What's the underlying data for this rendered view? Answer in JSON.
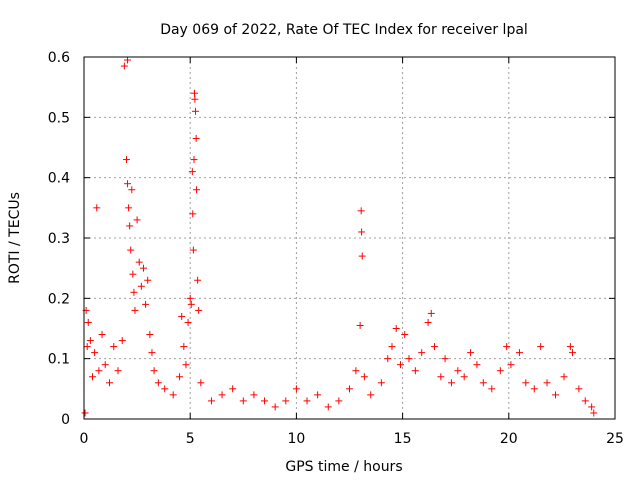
{
  "chart_data": {
    "type": "scatter",
    "title": "Day 069 of 2022, Rate Of TEC Index for receiver lpal",
    "xlabel": "GPS time / hours",
    "ylabel": "ROTI / TECUs",
    "xlim": [
      0,
      25
    ],
    "ylim": [
      0,
      0.6
    ],
    "xticks": [
      "0",
      "5",
      "10",
      "15",
      "20",
      "25"
    ],
    "yticks": [
      "0",
      "0.1",
      "0.2",
      "0.3",
      "0.4",
      "0.5",
      "0.6"
    ],
    "grid": true,
    "marker": "+",
    "color": "#ff0000",
    "series": [
      {
        "points": [
          [
            0.05,
            0.01
          ],
          [
            0.1,
            0.18
          ],
          [
            0.15,
            0.12
          ],
          [
            0.2,
            0.16
          ],
          [
            0.3,
            0.13
          ],
          [
            0.4,
            0.07
          ],
          [
            0.5,
            0.11
          ],
          [
            0.6,
            0.35
          ],
          [
            0.7,
            0.08
          ],
          [
            0.85,
            0.14
          ],
          [
            1.0,
            0.09
          ],
          [
            1.2,
            0.06
          ],
          [
            1.4,
            0.12
          ],
          [
            1.6,
            0.08
          ],
          [
            1.8,
            0.13
          ],
          [
            1.9,
            0.585
          ],
          [
            2.05,
            0.595
          ],
          [
            2.0,
            0.43
          ],
          [
            2.05,
            0.39
          ],
          [
            2.1,
            0.35
          ],
          [
            2.15,
            0.32
          ],
          [
            2.2,
            0.28
          ],
          [
            2.25,
            0.38
          ],
          [
            2.3,
            0.24
          ],
          [
            2.35,
            0.21
          ],
          [
            2.4,
            0.18
          ],
          [
            2.5,
            0.33
          ],
          [
            2.6,
            0.26
          ],
          [
            2.7,
            0.22
          ],
          [
            2.8,
            0.25
          ],
          [
            2.9,
            0.19
          ],
          [
            3.0,
            0.23
          ],
          [
            3.1,
            0.14
          ],
          [
            3.2,
            0.11
          ],
          [
            3.3,
            0.08
          ],
          [
            3.5,
            0.06
          ],
          [
            3.8,
            0.05
          ],
          [
            4.2,
            0.04
          ],
          [
            4.5,
            0.07
          ],
          [
            4.6,
            0.17
          ],
          [
            4.7,
            0.12
          ],
          [
            4.8,
            0.09
          ],
          [
            4.9,
            0.16
          ],
          [
            5.0,
            0.2
          ],
          [
            5.05,
            0.19
          ],
          [
            5.1,
            0.41
          ],
          [
            5.12,
            0.34
          ],
          [
            5.15,
            0.28
          ],
          [
            5.18,
            0.43
          ],
          [
            5.2,
            0.54
          ],
          [
            5.22,
            0.53
          ],
          [
            5.25,
            0.51
          ],
          [
            5.28,
            0.465
          ],
          [
            5.3,
            0.38
          ],
          [
            5.35,
            0.23
          ],
          [
            5.4,
            0.18
          ],
          [
            5.5,
            0.06
          ],
          [
            6.0,
            0.03
          ],
          [
            6.5,
            0.04
          ],
          [
            7.0,
            0.05
          ],
          [
            7.5,
            0.03
          ],
          [
            8.0,
            0.04
          ],
          [
            8.5,
            0.03
          ],
          [
            9.0,
            0.02
          ],
          [
            9.5,
            0.03
          ],
          [
            10.0,
            0.05
          ],
          [
            10.5,
            0.03
          ],
          [
            11.0,
            0.04
          ],
          [
            11.5,
            0.02
          ],
          [
            12.0,
            0.03
          ],
          [
            12.5,
            0.05
          ],
          [
            12.8,
            0.08
          ],
          [
            13.0,
            0.155
          ],
          [
            13.05,
            0.345
          ],
          [
            13.07,
            0.31
          ],
          [
            13.1,
            0.27
          ],
          [
            13.2,
            0.07
          ],
          [
            13.5,
            0.04
          ],
          [
            14.0,
            0.06
          ],
          [
            14.3,
            0.1
          ],
          [
            14.5,
            0.12
          ],
          [
            14.7,
            0.15
          ],
          [
            14.9,
            0.09
          ],
          [
            15.1,
            0.14
          ],
          [
            15.3,
            0.1
          ],
          [
            15.6,
            0.08
          ],
          [
            15.9,
            0.11
          ],
          [
            16.2,
            0.16
          ],
          [
            16.35,
            0.175
          ],
          [
            16.5,
            0.12
          ],
          [
            16.8,
            0.07
          ],
          [
            17.0,
            0.1
          ],
          [
            17.3,
            0.06
          ],
          [
            17.6,
            0.08
          ],
          [
            17.9,
            0.07
          ],
          [
            18.2,
            0.11
          ],
          [
            18.5,
            0.09
          ],
          [
            18.8,
            0.06
          ],
          [
            19.2,
            0.05
          ],
          [
            19.6,
            0.08
          ],
          [
            19.9,
            0.12
          ],
          [
            20.1,
            0.09
          ],
          [
            20.5,
            0.11
          ],
          [
            20.8,
            0.06
          ],
          [
            21.2,
            0.05
          ],
          [
            21.5,
            0.12
          ],
          [
            21.8,
            0.06
          ],
          [
            22.2,
            0.04
          ],
          [
            22.6,
            0.07
          ],
          [
            22.9,
            0.12
          ],
          [
            23.0,
            0.11
          ],
          [
            23.3,
            0.05
          ],
          [
            23.6,
            0.03
          ],
          [
            23.9,
            0.02
          ],
          [
            24.0,
            0.01
          ]
        ]
      }
    ]
  }
}
